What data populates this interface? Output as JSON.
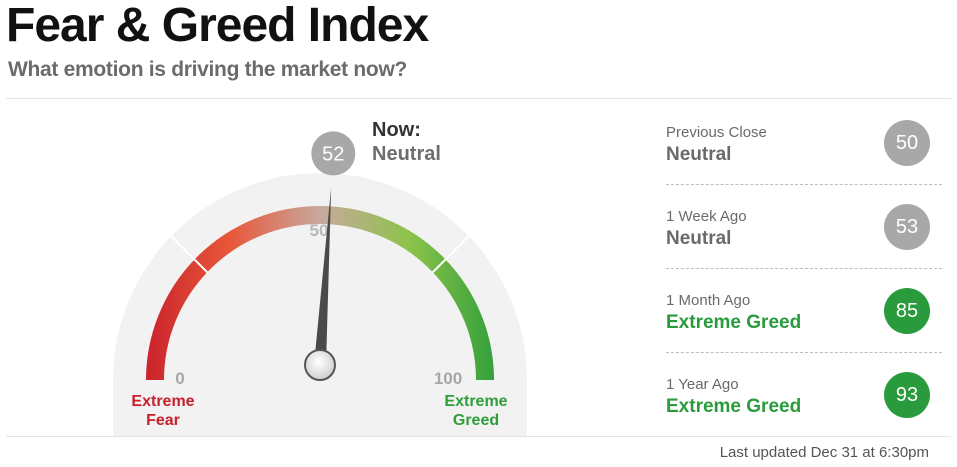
{
  "header": {
    "title": "Fear & Greed Index",
    "subtitle": "What emotion is driving the market now?"
  },
  "gauge": {
    "value": 52,
    "min": 0,
    "max": 100,
    "now_label": "Now:",
    "now_rating": "Neutral",
    "tick_min_label": "0",
    "tick_mid_label": "50",
    "tick_max_label": "100",
    "left_label_line1": "Extreme",
    "left_label_line2": "Fear",
    "right_label_line1": "Extreme",
    "right_label_line2": "Greed",
    "colors": {
      "fear": "#c8202b",
      "fear_mid": "#e8573a",
      "neutral": "#c7a99c",
      "greed_mid": "#8cc34a",
      "greed": "#2e9e3a",
      "needle": "#4a4a4a"
    }
  },
  "history": [
    {
      "label": "Previous Close",
      "rating": "Neutral",
      "value": "50",
      "color": "#a8a8a8",
      "rating_color": "#6a6a6a"
    },
    {
      "label": "1 Week Ago",
      "rating": "Neutral",
      "value": "53",
      "color": "#a8a8a8",
      "rating_color": "#6a6a6a"
    },
    {
      "label": "1 Month Ago",
      "rating": "Extreme Greed",
      "value": "85",
      "color": "#2a9b3c",
      "rating_color": "#2a9b3c"
    },
    {
      "label": "1 Year Ago",
      "rating": "Extreme Greed",
      "value": "93",
      "color": "#2a9b3c",
      "rating_color": "#2a9b3c"
    }
  ],
  "footer": {
    "updated": "Last updated Dec 31 at 6:30pm"
  }
}
